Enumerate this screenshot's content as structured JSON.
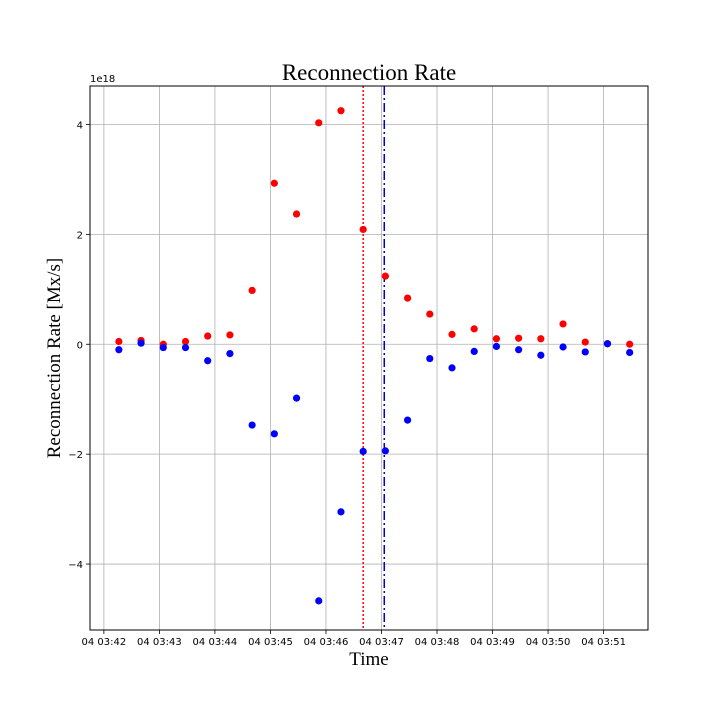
{
  "chart_data": {
    "type": "scatter",
    "title": "Reconnection Rate",
    "xlabel": "Time",
    "ylabel": "Reconnection Rate [Mx/s]",
    "y_offset_label": "1e18",
    "y_scale_factor": 1e+18,
    "x_unit": "minutes after 04 03:42",
    "xlim": [
      -0.25,
      9.8
    ],
    "ylim": [
      -5.2,
      4.7
    ],
    "grid": true,
    "x_ticks": [
      {
        "value": 0,
        "label": "04 03:42"
      },
      {
        "value": 1,
        "label": "04 03:43"
      },
      {
        "value": 2,
        "label": "04 03:44"
      },
      {
        "value": 3,
        "label": "04 03:45"
      },
      {
        "value": 4,
        "label": "04 03:46"
      },
      {
        "value": 5,
        "label": "04 03:47"
      },
      {
        "value": 6,
        "label": "04 03:48"
      },
      {
        "value": 7,
        "label": "04 03:49"
      },
      {
        "value": 8,
        "label": "04 03:50"
      },
      {
        "value": 9,
        "label": "04 03:51"
      }
    ],
    "y_ticks": [
      {
        "value": -4,
        "label": "−4"
      },
      {
        "value": -2,
        "label": "−2"
      },
      {
        "value": 0,
        "label": "0"
      },
      {
        "value": 2,
        "label": "2"
      },
      {
        "value": 4,
        "label": "4"
      }
    ],
    "x": [
      0.27,
      0.67,
      1.07,
      1.47,
      1.87,
      2.27,
      2.67,
      3.07,
      3.47,
      3.87,
      4.27,
      4.67,
      5.07,
      5.47,
      5.87,
      6.27,
      6.67,
      7.07,
      7.47,
      7.87,
      8.27,
      8.67,
      9.07,
      9.47
    ],
    "series": [
      {
        "color": "#ff0000",
        "values": [
          0.05,
          0.07,
          0.0,
          0.05,
          0.15,
          0.17,
          0.98,
          2.93,
          2.37,
          4.03,
          4.25,
          2.09,
          1.24,
          0.84,
          0.55,
          0.18,
          0.28,
          0.1,
          0.11,
          0.1,
          0.37,
          0.04,
          0.01,
          0.0
        ]
      },
      {
        "color": "#0000ff",
        "values": [
          -0.1,
          0.02,
          -0.06,
          -0.06,
          -0.3,
          -0.17,
          -1.47,
          -1.63,
          -0.98,
          -4.67,
          -3.05,
          -1.95,
          -1.94,
          -1.38,
          -0.26,
          -0.43,
          -0.13,
          -0.04,
          -0.1,
          -0.2,
          -0.05,
          -0.14,
          0.01,
          -0.15
        ]
      }
    ],
    "vertical_lines": [
      {
        "x": 4.67,
        "color": "#ff0000",
        "style": "dotted"
      },
      {
        "x": 5.05,
        "color": "#0000cc",
        "style": "dashdot"
      }
    ]
  }
}
